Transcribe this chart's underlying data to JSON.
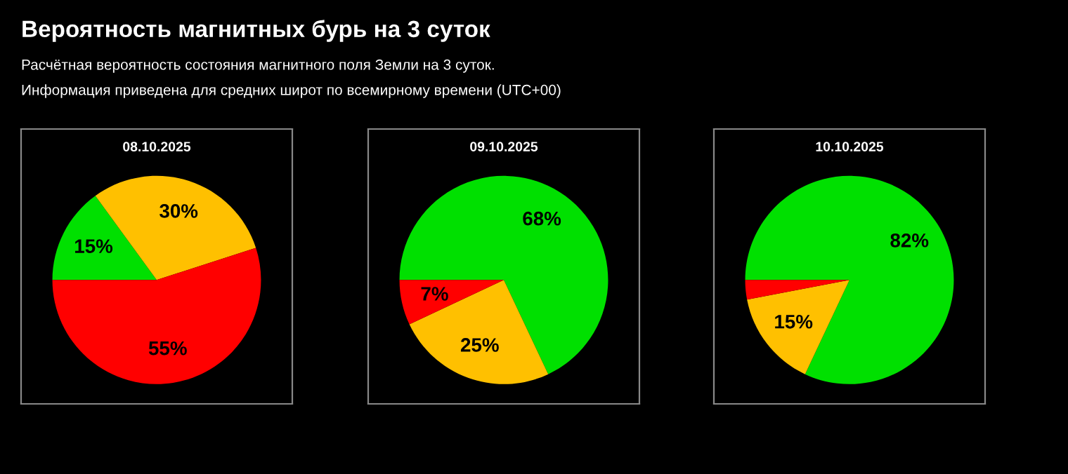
{
  "chart_data": [
    {
      "type": "pie",
      "title": "08.10.2025",
      "categories": [
        null,
        null,
        null
      ],
      "values": [
        15,
        30,
        55
      ],
      "colors": [
        "#00e000",
        "#ffc000",
        "#ff0000"
      ],
      "value_labels": [
        "15%",
        "30%",
        "55%"
      ],
      "annotations": [
        "Вероятность магнитных бурь на 3 суток",
        "Расчётная вероятность состояния магнитного поля Земли на 3 суток.",
        "Информация приведена для средних широт по всемирному времени (UTC+00)"
      ]
    },
    {
      "type": "pie",
      "title": "09.10.2025",
      "categories": [
        null,
        null,
        null
      ],
      "values": [
        68,
        25,
        7
      ],
      "colors": [
        "#00e000",
        "#ffc000",
        "#ff0000"
      ],
      "value_labels": [
        "68%",
        "25%",
        "7%"
      ]
    },
    {
      "type": "pie",
      "title": "10.10.2025",
      "categories": [
        null,
        null,
        null
      ],
      "values": [
        82,
        15,
        3
      ],
      "colors": [
        "#00e000",
        "#ffc000",
        "#ff0000"
      ],
      "value_labels": [
        "82%",
        "15%",
        null
      ]
    }
  ]
}
